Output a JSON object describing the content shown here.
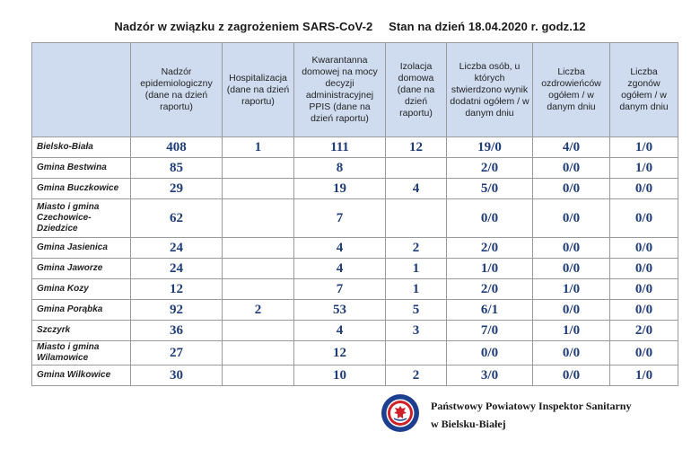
{
  "title": {
    "left": "Nadzór w związku z zagrożeniem SARS-CoV-2",
    "right": "Stan na dzień 18.04.2020 r. godz.12"
  },
  "table": {
    "headers": [
      "",
      "Nadzór epidemiologiczny (dane na dzień raportu)",
      "Hospitalizacja (dane na dzień raportu)",
      "Kwarantanna domowej na mocy decyzji administracyjnej PPIS (dane na dzień raportu)",
      "Izolacja domowa (dane na dzień raportu)",
      "Liczba osób, u których stwierdzono wynik dodatni ogółem / w danym dniu",
      "Liczba ozdrowieńców ogółem / w danym dniu",
      "Liczba zgonów ogółem / w danym dniu"
    ],
    "rows": [
      {
        "name": "Bielsko-Biała",
        "cells": [
          "408",
          "1",
          "111",
          "12",
          "19/0",
          "4/0",
          "1/0"
        ]
      },
      {
        "name": "Gmina Bestwina",
        "cells": [
          "85",
          "",
          "8",
          "",
          "2/0",
          "0/0",
          "1/0"
        ]
      },
      {
        "name": "Gmina Buczkowice",
        "cells": [
          "29",
          "",
          "19",
          "4",
          "5/0",
          "0/0",
          "0/0"
        ]
      },
      {
        "name": "Miasto i gmina Czechowice-Dziedzice",
        "cells": [
          "62",
          "",
          "7",
          "",
          "0/0",
          "0/0",
          "0/0"
        ]
      },
      {
        "name": "Gmina Jasienica",
        "cells": [
          "24",
          "",
          "4",
          "2",
          "2/0",
          "0/0",
          "0/0"
        ]
      },
      {
        "name": "Gmina Jaworze",
        "cells": [
          "24",
          "",
          "4",
          "1",
          "1/0",
          "0/0",
          "0/0"
        ]
      },
      {
        "name": "Gmina Kozy",
        "cells": [
          "12",
          "",
          "7",
          "1",
          "2/0",
          "1/0",
          "0/0"
        ]
      },
      {
        "name": "Gmina Porąbka",
        "cells": [
          "92",
          "2",
          "53",
          "5",
          "6/1",
          "0/0",
          "0/0"
        ]
      },
      {
        "name": "Szczyrk",
        "cells": [
          "36",
          "",
          "4",
          "3",
          "7/0",
          "1/0",
          "2/0"
        ]
      },
      {
        "name": "Miasto i gmina Wilamowice",
        "cells": [
          "27",
          "",
          "12",
          "",
          "0/0",
          "0/0",
          "0/0"
        ]
      },
      {
        "name": "Gmina Wilkowice",
        "cells": [
          "30",
          "",
          "10",
          "2",
          "3/0",
          "0/0",
          "1/0"
        ]
      }
    ]
  },
  "footer": {
    "line1": "Państwowy Powiatowy Inspektor Sanitarny",
    "line2": "w Bielsku-Białej",
    "seal_icon": "sanepid-eagle-seal-icon"
  },
  "colors": {
    "header_bg": "#cfdcf0",
    "value_text": "#1f3d78",
    "seal_blue": "#1d3f8f",
    "seal_red": "#d0202a"
  }
}
